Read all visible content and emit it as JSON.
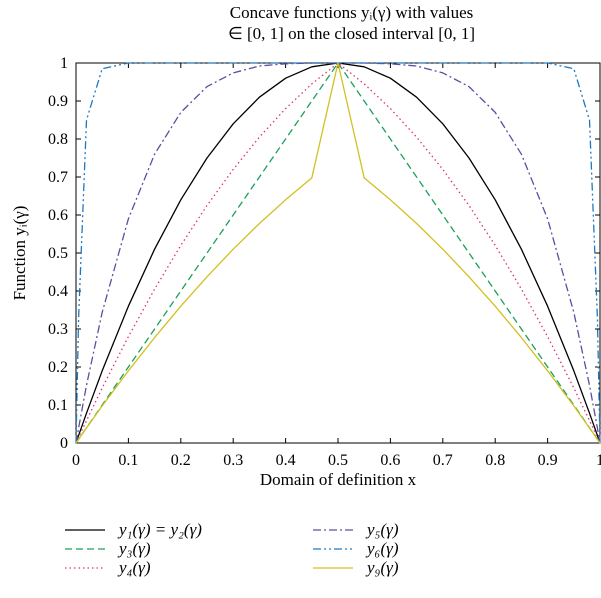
{
  "chart_data": {
    "type": "line",
    "title_line1": "Concave functions yᵢ(γ) with values",
    "title_line2": "∈ [0, 1] on the closed interval [0, 1]",
    "xlabel": "Domain of definition x",
    "ylabel": "Function yᵢ(γ)",
    "xlim": [
      0,
      1
    ],
    "ylim": [
      0,
      1
    ],
    "xticks": [
      "0",
      "0.1",
      "0.2",
      "0.3",
      "0.4",
      "0.5",
      "0.6",
      "0.7",
      "0.8",
      "0.9",
      "1"
    ],
    "yticks": [
      "0",
      "0.1",
      "0.2",
      "0.3",
      "0.4",
      "0.5",
      "0.6",
      "0.7",
      "0.8",
      "0.9",
      "1"
    ],
    "grid": false,
    "legend_placement": "below",
    "x": [
      0,
      0.005,
      0.02,
      0.05,
      0.1,
      0.15,
      0.2,
      0.25,
      0.3,
      0.35,
      0.4,
      0.45,
      0.5,
      0.55,
      0.6,
      0.65,
      0.7,
      0.75,
      0.8,
      0.85,
      0.9,
      0.95,
      0.98,
      0.995,
      1
    ],
    "series": [
      {
        "name": "y₁(γ) = y₂(γ)",
        "color": "#000000",
        "dash": "solid",
        "values": [
          0,
          0.0199,
          0.0784,
          0.19,
          0.36,
          0.51,
          0.64,
          0.75,
          0.84,
          0.91,
          0.96,
          0.99,
          1,
          0.99,
          0.96,
          0.91,
          0.84,
          0.75,
          0.64,
          0.51,
          0.36,
          0.19,
          0.0784,
          0.0199,
          0
        ]
      },
      {
        "name": "y₃(γ)",
        "color": "#1aa05a",
        "dash": "dashed",
        "values": [
          0,
          0.01,
          0.04,
          0.1,
          0.2,
          0.3,
          0.4,
          0.5,
          0.6,
          0.7,
          0.8,
          0.9,
          1,
          0.9,
          0.8,
          0.7,
          0.6,
          0.5,
          0.4,
          0.3,
          0.2,
          0.1,
          0.04,
          0.01,
          0
        ]
      },
      {
        "name": "y₄(γ)",
        "color": "#e0307a",
        "dash": "dotted",
        "values": [
          0,
          0.0149,
          0.059,
          0.145,
          0.28,
          0.405,
          0.52,
          0.625,
          0.72,
          0.805,
          0.88,
          0.945,
          1,
          0.945,
          0.88,
          0.805,
          0.72,
          0.625,
          0.52,
          0.405,
          0.28,
          0.145,
          0.059,
          0.0149,
          0
        ]
      },
      {
        "name": "y₅(γ)",
        "color": "#5a4fa0",
        "dash": "dashdot",
        "values": [
          0,
          0.0394,
          0.152,
          0.344,
          0.59,
          0.76,
          0.87,
          0.938,
          0.974,
          0.992,
          0.998,
          0.9999,
          1,
          0.9999,
          0.998,
          0.992,
          0.974,
          0.938,
          0.87,
          0.76,
          0.59,
          0.344,
          0.152,
          0.0394,
          0
        ]
      },
      {
        "name": "y₆(γ)",
        "color": "#1e78c0",
        "dash": "dashdotdot",
        "values": [
          0,
          0.33,
          0.85,
          0.985,
          1,
          1,
          1,
          1,
          1,
          1,
          1,
          1,
          1,
          1,
          1,
          1,
          1,
          1,
          1,
          1,
          1,
          0.985,
          0.85,
          0.33,
          0
        ]
      },
      {
        "name": "y₉(γ)",
        "color": "#d2c020",
        "dash": "solid",
        "values": [
          0,
          0.01,
          0.0396,
          0.0975,
          0.19,
          0.2775,
          0.36,
          0.4375,
          0.51,
          0.5775,
          0.64,
          0.6975,
          1,
          0.6975,
          0.64,
          0.5775,
          0.51,
          0.4375,
          0.36,
          0.2775,
          0.19,
          0.0975,
          0.0396,
          0.01,
          0
        ]
      }
    ]
  }
}
